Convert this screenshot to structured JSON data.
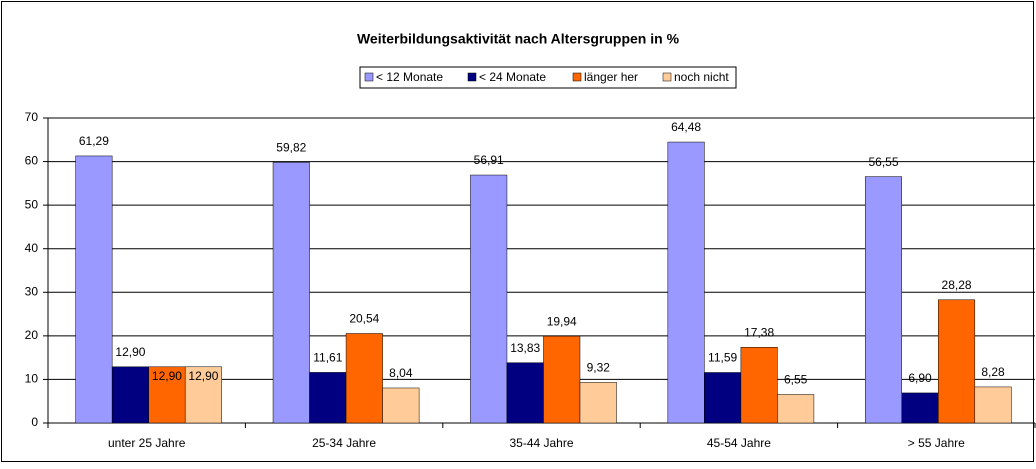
{
  "chart_data": {
    "type": "bar",
    "title": "Weiterbildungsaktivität nach Altersgruppen in %",
    "categories": [
      "unter 25 Jahre",
      "25-34 Jahre",
      "35-44 Jahre",
      "45-54 Jahre",
      "> 55 Jahre"
    ],
    "series": [
      {
        "name": "< 12 Monate",
        "color": "#9999ff",
        "values": [
          61.29,
          59.82,
          56.91,
          64.48,
          56.55
        ],
        "value_labels": [
          "61,29",
          "59,82",
          "56,91",
          "64,48",
          "56,55"
        ]
      },
      {
        "name": "< 24 Monate",
        "color": "#000080",
        "values": [
          12.9,
          11.61,
          13.83,
          11.59,
          6.9
        ],
        "value_labels": [
          "12,90",
          "11,61",
          "13,83",
          "11,59",
          "6,90"
        ]
      },
      {
        "name": "länger her",
        "color": "#ff6600",
        "values": [
          12.9,
          20.54,
          19.94,
          17.38,
          28.28
        ],
        "value_labels": [
          "12,90",
          "20,54",
          "19,94",
          "17,38",
          "28,28"
        ]
      },
      {
        "name": "noch nicht",
        "color": "#ffcc99",
        "values": [
          12.9,
          8.04,
          9.32,
          6.55,
          8.28
        ],
        "value_labels": [
          "12,90",
          "8,04",
          "9,32",
          "6,55",
          "8,28"
        ]
      }
    ],
    "ylim": [
      0,
      70
    ],
    "yticks": [
      0,
      10,
      20,
      30,
      40,
      50,
      60,
      70
    ],
    "grid": true,
    "legend": "top"
  }
}
